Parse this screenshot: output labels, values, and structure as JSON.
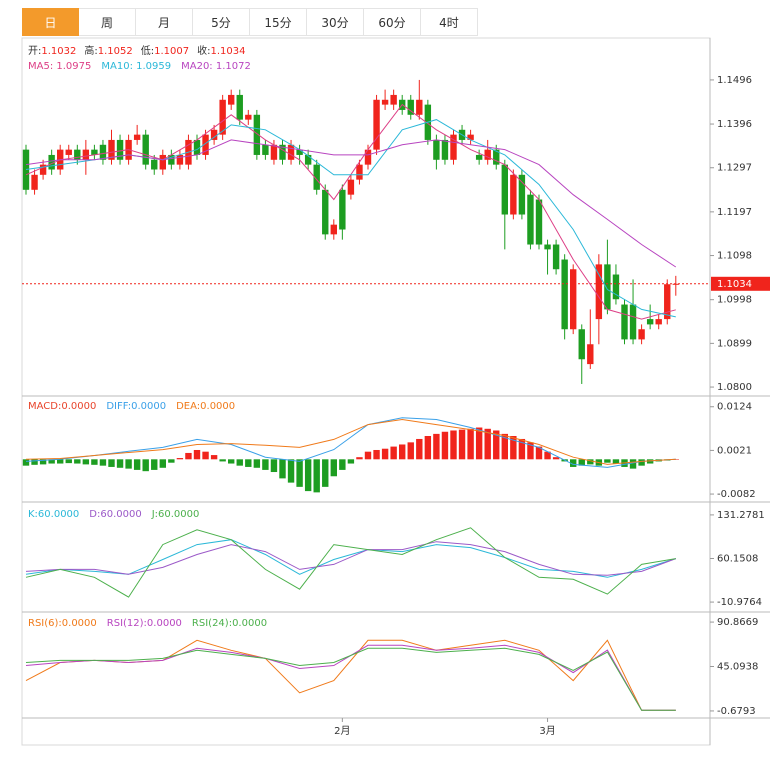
{
  "tabs": [
    "日",
    "周",
    "月",
    "5分",
    "15分",
    "30分",
    "60分",
    "4时"
  ],
  "chart_data": [
    {
      "type": "candlestick",
      "info": [
        {
          "label": "开:",
          "value": "1.1032"
        },
        {
          "label": "高:",
          "value": "1.1052"
        },
        {
          "label": "低:",
          "value": "1.1007"
        },
        {
          "label": "收:",
          "value": "1.1034"
        }
      ],
      "categories": [
        null,
        null,
        null,
        null,
        null,
        null,
        null,
        null,
        null,
        null,
        null,
        null,
        null,
        null,
        null,
        null,
        null,
        null,
        null,
        null,
        null,
        null,
        null,
        null,
        null,
        null,
        null,
        null,
        null,
        null,
        null,
        null,
        null,
        null,
        null,
        null,
        null,
        "2月",
        null,
        null,
        null,
        null,
        null,
        null,
        null,
        null,
        null,
        null,
        null,
        null,
        null,
        null,
        null,
        null,
        null,
        null,
        null,
        null,
        null,
        null,
        null,
        "3月",
        null,
        null,
        null,
        null,
        null,
        null,
        null,
        null,
        null,
        null,
        null,
        null,
        null,
        null,
        null
      ],
      "ohlc": [
        [
          1.1338,
          1.1349,
          1.1236,
          1.1247
        ],
        [
          1.1247,
          1.1293,
          1.1236,
          1.1281
        ],
        [
          1.1281,
          1.1315,
          1.127,
          1.1304
        ],
        [
          1.1326,
          1.1338,
          1.1281,
          1.1293
        ],
        [
          1.1293,
          1.1349,
          1.1281,
          1.1338
        ],
        [
          1.1326,
          1.1349,
          1.1315,
          1.1338
        ],
        [
          1.1338,
          1.1349,
          1.1304,
          1.1315
        ],
        [
          1.1315,
          1.136,
          1.1281,
          1.1338
        ],
        [
          1.1338,
          1.1349,
          1.1315,
          1.1326
        ],
        [
          1.1349,
          1.136,
          1.1304,
          1.1315
        ],
        [
          1.1315,
          1.1383,
          1.1304,
          1.136
        ],
        [
          1.136,
          1.1372,
          1.1304,
          1.1315
        ],
        [
          1.1315,
          1.1372,
          1.1304,
          1.136
        ],
        [
          1.136,
          1.1394,
          1.1349,
          1.1372
        ],
        [
          1.1372,
          1.1383,
          1.1293,
          1.1304
        ],
        [
          1.1315,
          1.1326,
          1.1281,
          1.1293
        ],
        [
          1.1293,
          1.1338,
          1.1281,
          1.1326
        ],
        [
          1.1326,
          1.1338,
          1.1293,
          1.1304
        ],
        [
          1.1304,
          1.1338,
          1.1293,
          1.1326
        ],
        [
          1.1304,
          1.1372,
          1.1293,
          1.136
        ],
        [
          1.136,
          1.1372,
          1.1315,
          1.1326
        ],
        [
          1.1326,
          1.1383,
          1.1315,
          1.1372
        ],
        [
          1.136,
          1.1394,
          1.1349,
          1.1383
        ],
        [
          1.1372,
          1.1462,
          1.136,
          1.1451
        ],
        [
          1.144,
          1.1474,
          1.1428,
          1.1462
        ],
        [
          1.1462,
          1.1474,
          1.1394,
          1.1406
        ],
        [
          1.1406,
          1.1428,
          1.1394,
          1.1417
        ],
        [
          1.1417,
          1.1428,
          1.1315,
          1.1326
        ],
        [
          1.1349,
          1.136,
          1.1315,
          1.1326
        ],
        [
          1.1315,
          1.136,
          1.1304,
          1.1349
        ],
        [
          1.1349,
          1.136,
          1.1304,
          1.1315
        ],
        [
          1.1315,
          1.136,
          1.1304,
          1.1349
        ],
        [
          1.1338,
          1.1349,
          1.1304,
          1.1326
        ],
        [
          1.1326,
          1.1338,
          1.1293,
          1.1304
        ],
        [
          1.1304,
          1.1315,
          1.1236,
          1.1247
        ],
        [
          1.1247,
          1.1259,
          1.1134,
          1.1146
        ],
        [
          1.1146,
          1.118,
          1.1134,
          1.1168
        ],
        [
          1.1247,
          1.1259,
          1.1134,
          1.1157
        ],
        [
          1.1236,
          1.1281,
          1.1225,
          1.127
        ],
        [
          1.127,
          1.1315,
          1.1259,
          1.1304
        ],
        [
          1.1304,
          1.1349,
          1.1293,
          1.1338
        ],
        [
          1.1338,
          1.1462,
          1.1326,
          1.1451
        ],
        [
          1.144,
          1.1474,
          1.1428,
          1.1451
        ],
        [
          1.144,
          1.1474,
          1.1428,
          1.1462
        ],
        [
          1.1451,
          1.1462,
          1.1417,
          1.1428
        ],
        [
          1.1451,
          1.1462,
          1.1406,
          1.1417
        ],
        [
          1.1417,
          1.1496,
          1.1406,
          1.1451
        ],
        [
          1.144,
          1.1451,
          1.1349,
          1.136
        ],
        [
          1.136,
          1.1372,
          1.1293,
          1.1315
        ],
        [
          1.136,
          1.1372,
          1.1304,
          1.1315
        ],
        [
          1.1315,
          1.1383,
          1.1304,
          1.1372
        ],
        [
          1.1383,
          1.1394,
          1.1349,
          1.136
        ],
        [
          1.136,
          1.1383,
          1.1349,
          1.1372
        ],
        [
          1.1326,
          1.1338,
          1.1304,
          1.1315
        ],
        [
          1.1315,
          1.136,
          1.1304,
          1.1338
        ],
        [
          1.1338,
          1.1349,
          1.1293,
          1.1304
        ],
        [
          1.1304,
          1.1315,
          1.1112,
          1.1191
        ],
        [
          1.1191,
          1.1293,
          1.118,
          1.1281
        ],
        [
          1.1281,
          1.1293,
          1.118,
          1.1191
        ],
        [
          1.1236,
          1.1247,
          1.1112,
          1.1123
        ],
        [
          1.1225,
          1.1236,
          1.1112,
          1.1123
        ],
        [
          1.1123,
          1.1134,
          1.1055,
          1.1112
        ],
        [
          1.1123,
          1.1134,
          1.1055,
          1.1067
        ],
        [
          1.1089,
          1.1101,
          1.0908,
          1.0931
        ],
        [
          1.0931,
          1.1078,
          1.092,
          1.1067
        ],
        [
          1.0931,
          1.0942,
          1.0807,
          1.0863
        ],
        [
          1.0852,
          1.0976,
          1.0841,
          1.0897
        ],
        [
          1.0954,
          1.1101,
          1.0897,
          1.1078
        ],
        [
          1.1078,
          1.1134,
          1.0965,
          1.0976
        ],
        [
          1.1055,
          1.1078,
          1.0987,
          1.0999
        ],
        [
          1.0987,
          1.0999,
          1.0897,
          1.0908
        ],
        [
          1.0987,
          1.1044,
          1.0897,
          1.0908
        ],
        [
          1.0908,
          1.0942,
          1.0897,
          1.0931
        ],
        [
          1.0954,
          1.0987,
          1.0931,
          1.0942
        ],
        [
          1.0942,
          1.0965,
          1.0931,
          1.0954
        ],
        [
          1.0954,
          1.1044,
          1.0942,
          1.1033
        ],
        [
          1.1032,
          1.1052,
          1.1007,
          1.1034
        ]
      ],
      "up_color": "#f0241c",
      "down_color": "#1d9d21",
      "ylim": [
        1.0782,
        1.1591
      ],
      "yticks": [
        1.1496,
        1.1396,
        1.1297,
        1.1197,
        1.1098,
        1.0998,
        1.0899,
        {
          "value": 1.08,
          "label": "1.0800"
        }
      ],
      "last_price": 1.1034,
      "last_price_color": "#f0241c",
      "x": [
        0,
        4,
        8,
        12,
        16,
        20,
        24,
        28,
        32,
        36,
        40,
        44,
        48,
        52,
        56,
        60,
        64,
        68,
        72,
        76
      ],
      "series": [
        {
          "name": "MA5",
          "legend_label": "MA5: 1.0975",
          "color": "#dd3f86",
          "values": [
            1.1281,
            1.1315,
            1.1326,
            1.1338,
            1.1315,
            1.136,
            1.1417,
            1.136,
            1.1315,
            1.1225,
            1.1338,
            1.144,
            1.1383,
            1.1338,
            1.1304,
            1.1225,
            1.1089,
            1.0976,
            1.0954,
            1.0975
          ]
        },
        {
          "name": "MA10",
          "legend_label": "MA10: 1.0959",
          "color": "#2bb8d8",
          "values": [
            1.1293,
            1.1304,
            1.1315,
            1.1326,
            1.1315,
            1.1338,
            1.1394,
            1.1383,
            1.1338,
            1.1281,
            1.1281,
            1.1383,
            1.1406,
            1.136,
            1.1326,
            1.1259,
            1.1157,
            1.1021,
            1.0976,
            1.0959
          ]
        },
        {
          "name": "MA20",
          "legend_label": "MA20: 1.1072",
          "color": "#b845c0",
          "values": [
            1.1304,
            1.1315,
            1.1315,
            1.1326,
            1.1315,
            1.1326,
            1.136,
            1.1349,
            1.1338,
            1.1326,
            1.1326,
            1.1349,
            1.136,
            1.1349,
            1.1338,
            1.1304,
            1.1236,
            1.118,
            1.1123,
            1.1072
          ]
        }
      ]
    },
    {
      "type": "macd",
      "ylim": [
        -0.0096,
        0.0147
      ],
      "yticks": [
        0.0124,
        0.0021,
        -0.0082
      ],
      "histogram": {
        "legend_label": "MACD:0.0000",
        "color": "#e8452c",
        "up_color": "#f0241c",
        "down_color": "#1d9d21",
        "values": [
          -0.0015,
          -0.0013,
          -0.0012,
          -0.001,
          -0.001,
          -0.0009,
          -0.001,
          -0.0012,
          -0.0013,
          -0.0015,
          -0.0018,
          -0.002,
          -0.0022,
          -0.0025,
          -0.0028,
          -0.0025,
          -0.002,
          -0.0008,
          0.0003,
          0.0015,
          0.0022,
          0.0018,
          0.001,
          -0.0005,
          -0.001,
          -0.0015,
          -0.0018,
          -0.002,
          -0.0025,
          -0.003,
          -0.0045,
          -0.0055,
          -0.0065,
          -0.0075,
          -0.0078,
          -0.0065,
          -0.004,
          -0.0025,
          -0.001,
          0.0005,
          0.0018,
          0.0022,
          0.0025,
          0.003,
          0.0035,
          0.004,
          0.0048,
          0.0055,
          0.006,
          0.0065,
          0.0068,
          0.007,
          0.0072,
          0.0075,
          0.0072,
          0.0068,
          0.006,
          0.0055,
          0.0048,
          0.004,
          0.003,
          0.0018,
          0.0005,
          -0.0005,
          -0.0018,
          -0.0015,
          -0.0012,
          -0.0015,
          -0.0008,
          -0.001,
          -0.0018,
          -0.0022,
          -0.0015,
          -0.001,
          -0.0005,
          -0.0003,
          0
        ]
      },
      "x": [
        0,
        4,
        8,
        12,
        16,
        20,
        24,
        28,
        32,
        36,
        40,
        44,
        48,
        52,
        56,
        60,
        64,
        68,
        72,
        76
      ],
      "series": [
        {
          "name": "DIFF",
          "legend_label": "DIFF:0.0000",
          "color": "#3aa0e8",
          "values": [
            -0.0005,
            0,
            0.0009,
            0.0019,
            0.0028,
            0.0047,
            0.0035,
            0.0005,
            -0.0005,
            0.0023,
            0.0082,
            0.0098,
            0.0094,
            0.0075,
            0.0051,
            0.0028,
            -0.0012,
            -0.0019,
            -0.0005,
            0
          ]
        },
        {
          "name": "DEA",
          "legend_label": "DEA:0.0000",
          "color": "#f07a1a",
          "values": [
            0,
            0.0002,
            0.0009,
            0.0016,
            0.0023,
            0.0035,
            0.0037,
            0.0033,
            0.0028,
            0.0047,
            0.0082,
            0.0094,
            0.0082,
            0.007,
            0.0056,
            0.0035,
            0.0005,
            -0.0012,
            -0.0005,
            0
          ]
        }
      ]
    },
    {
      "type": "line",
      "ylim": [
        -23.91,
        147.44
      ],
      "yticks": [
        131.2781,
        60.1508,
        -10.9764
      ],
      "x": [
        0,
        4,
        8,
        12,
        16,
        20,
        24,
        28,
        32,
        36,
        40,
        44,
        48,
        52,
        56,
        60,
        64,
        68,
        72,
        76
      ],
      "series": [
        {
          "name": "K",
          "legend_label": "K:60.0000",
          "color": "#2bb8d8",
          "values": [
            34.29,
            42.37,
            39.14,
            34.29,
            58.53,
            82.78,
            90.87,
            66.62,
            34.29,
            58.53,
            74.7,
            71.47,
            82.78,
            77.93,
            61.77,
            42.37,
            39.14,
            29.44,
            42.37,
            60
          ]
        },
        {
          "name": "D",
          "legend_label": "D:60.0000",
          "color": "#9b59c8",
          "values": [
            39.14,
            42.37,
            42.37,
            34.29,
            45.6,
            66.62,
            82.78,
            71.47,
            42.37,
            50.45,
            74.7,
            74.7,
            87.63,
            82.78,
            71.47,
            50.45,
            34.29,
            32.67,
            39.14,
            60
          ]
        },
        {
          "name": "J",
          "legend_label": "J:60.0000",
          "color": "#4cb04c",
          "values": [
            29.44,
            42.37,
            29.44,
            -2.89,
            82.78,
            107.03,
            90.87,
            42.37,
            10.04,
            82.78,
            74.7,
            66.62,
            90.87,
            110.26,
            61.77,
            29.44,
            26.2,
            1.96,
            50.45,
            60
          ]
        }
      ]
    },
    {
      "type": "line",
      "ylim": [
        -7.96,
        99.19
      ],
      "yticks": [
        90.8669,
        45.0938,
        -0.6793
      ],
      "x": [
        0,
        4,
        8,
        12,
        16,
        20,
        24,
        28,
        32,
        36,
        40,
        44,
        48,
        52,
        56,
        60,
        64,
        68,
        72,
        76
      ],
      "series": [
        {
          "name": "RSI(6)",
          "legend_label": "RSI(6):0.0000",
          "color": "#f07a1a",
          "values": [
            30.53,
            49.25,
            51.34,
            49.25,
            51.34,
            72.14,
            61.74,
            53.42,
            18.04,
            30.53,
            72.14,
            72.14,
            61.74,
            66.94,
            72.14,
            61.74,
            30.53,
            72.14,
            0,
            0
          ]
        },
        {
          "name": "RSI(12)",
          "legend_label": "RSI(12):0.0000",
          "color": "#b845c0",
          "values": [
            46.13,
            49.25,
            51.34,
            49.25,
            51.34,
            63.82,
            59.66,
            53.42,
            43.01,
            46.13,
            66.94,
            66.94,
            61.74,
            63.82,
            66.94,
            59.66,
            38.85,
            62,
            0,
            0
          ]
        },
        {
          "name": "RSI(24)",
          "legend_label": "RSI(24):0.0000",
          "color": "#4cb04c",
          "values": [
            49.25,
            51.34,
            51.34,
            51.34,
            53.42,
            61.74,
            57.58,
            53.42,
            46.13,
            49.25,
            63.82,
            63.82,
            59.66,
            61.74,
            63.82,
            57.58,
            40.93,
            60,
            0,
            0
          ]
        }
      ]
    }
  ]
}
